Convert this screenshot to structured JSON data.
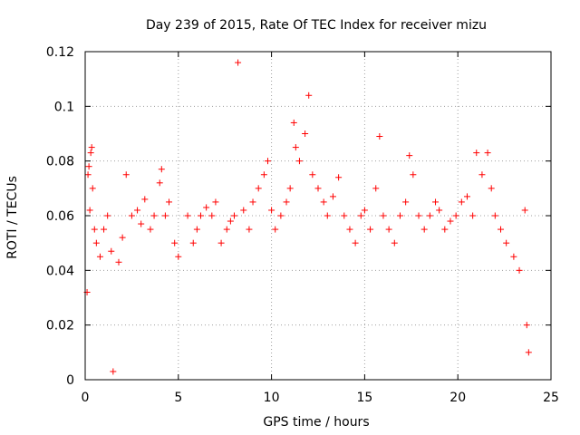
{
  "chart_data": {
    "type": "scatter",
    "title": "Day 239 of 2015, Rate Of TEC Index for receiver mizu",
    "xlabel": "GPS time / hours",
    "ylabel": "ROTI / TECUs",
    "xlim": [
      0,
      25
    ],
    "ylim": [
      0,
      0.12
    ],
    "xticks": [
      "0",
      "5",
      "10",
      "15",
      "20",
      "25"
    ],
    "yticks": [
      "0",
      "0.02",
      "0.04",
      "0.06",
      "0.08",
      "0.1",
      "0.12"
    ],
    "grid": true,
    "marker": "+",
    "color": "#ff0000",
    "series": [
      {
        "points": [
          [
            0.1,
            0.032
          ],
          [
            0.15,
            0.075
          ],
          [
            0.2,
            0.078
          ],
          [
            0.25,
            0.062
          ],
          [
            0.3,
            0.083
          ],
          [
            0.35,
            0.085
          ],
          [
            0.4,
            0.07
          ],
          [
            0.5,
            0.055
          ],
          [
            0.6,
            0.05
          ],
          [
            0.8,
            0.045
          ],
          [
            1.0,
            0.055
          ],
          [
            1.2,
            0.06
          ],
          [
            1.4,
            0.047
          ],
          [
            1.5,
            0.003
          ],
          [
            1.8,
            0.043
          ],
          [
            2.0,
            0.052
          ],
          [
            2.2,
            0.075
          ],
          [
            2.5,
            0.06
          ],
          [
            2.8,
            0.062
          ],
          [
            3.0,
            0.057
          ],
          [
            3.2,
            0.066
          ],
          [
            3.5,
            0.055
          ],
          [
            3.7,
            0.06
          ],
          [
            4.0,
            0.072
          ],
          [
            4.1,
            0.077
          ],
          [
            4.3,
            0.06
          ],
          [
            4.5,
            0.065
          ],
          [
            4.8,
            0.05
          ],
          [
            5.0,
            0.045
          ],
          [
            5.5,
            0.06
          ],
          [
            5.8,
            0.05
          ],
          [
            6.0,
            0.055
          ],
          [
            6.2,
            0.06
          ],
          [
            6.5,
            0.063
          ],
          [
            6.8,
            0.06
          ],
          [
            7.0,
            0.065
          ],
          [
            7.3,
            0.05
          ],
          [
            7.6,
            0.055
          ],
          [
            7.8,
            0.058
          ],
          [
            8.0,
            0.06
          ],
          [
            8.2,
            0.116
          ],
          [
            8.5,
            0.062
          ],
          [
            8.8,
            0.055
          ],
          [
            9.0,
            0.065
          ],
          [
            9.3,
            0.07
          ],
          [
            9.6,
            0.075
          ],
          [
            9.8,
            0.08
          ],
          [
            10.0,
            0.062
          ],
          [
            10.2,
            0.055
          ],
          [
            10.5,
            0.06
          ],
          [
            10.8,
            0.065
          ],
          [
            11.0,
            0.07
          ],
          [
            11.2,
            0.094
          ],
          [
            11.3,
            0.085
          ],
          [
            11.5,
            0.08
          ],
          [
            11.8,
            0.09
          ],
          [
            12.0,
            0.104
          ],
          [
            12.2,
            0.075
          ],
          [
            12.5,
            0.07
          ],
          [
            12.8,
            0.065
          ],
          [
            13.0,
            0.06
          ],
          [
            13.3,
            0.067
          ],
          [
            13.6,
            0.074
          ],
          [
            13.9,
            0.06
          ],
          [
            14.2,
            0.055
          ],
          [
            14.5,
            0.05
          ],
          [
            14.8,
            0.06
          ],
          [
            15.0,
            0.062
          ],
          [
            15.3,
            0.055
          ],
          [
            15.6,
            0.07
          ],
          [
            15.8,
            0.089
          ],
          [
            16.0,
            0.06
          ],
          [
            16.3,
            0.055
          ],
          [
            16.6,
            0.05
          ],
          [
            16.9,
            0.06
          ],
          [
            17.2,
            0.065
          ],
          [
            17.4,
            0.082
          ],
          [
            17.6,
            0.075
          ],
          [
            17.9,
            0.06
          ],
          [
            18.2,
            0.055
          ],
          [
            18.5,
            0.06
          ],
          [
            18.8,
            0.065
          ],
          [
            19.0,
            0.062
          ],
          [
            19.3,
            0.055
          ],
          [
            19.6,
            0.058
          ],
          [
            19.9,
            0.06
          ],
          [
            20.2,
            0.065
          ],
          [
            20.5,
            0.067
          ],
          [
            20.8,
            0.06
          ],
          [
            21.0,
            0.083
          ],
          [
            21.3,
            0.075
          ],
          [
            21.6,
            0.083
          ],
          [
            21.8,
            0.07
          ],
          [
            22.0,
            0.06
          ],
          [
            22.3,
            0.055
          ],
          [
            22.6,
            0.05
          ],
          [
            23.0,
            0.045
          ],
          [
            23.3,
            0.04
          ],
          [
            23.6,
            0.062
          ],
          [
            23.7,
            0.02
          ],
          [
            23.8,
            0.01
          ]
        ]
      }
    ]
  }
}
